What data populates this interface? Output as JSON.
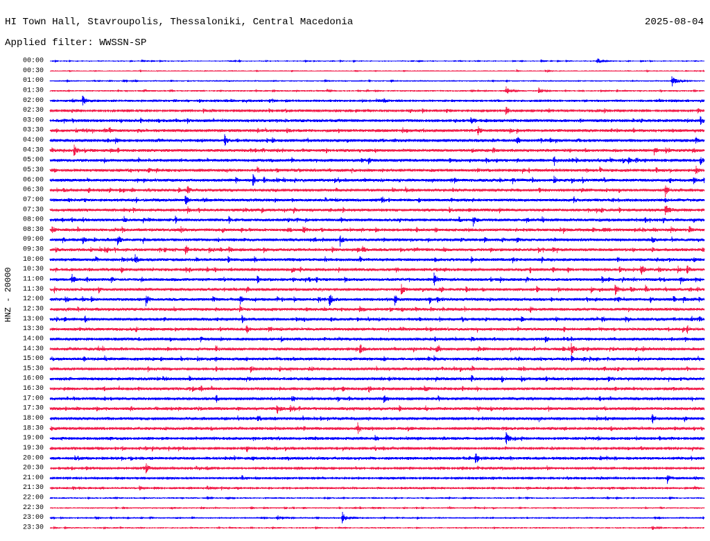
{
  "chart_data": {
    "type": "line",
    "title": "HI Town Hall, Stavroupolis, Thessaloniki, Central Macedonia",
    "date": "2025-08-04",
    "subtitle": "Applied filter: WWSSN-SP",
    "xlabel": "",
    "ylabel": "HNZ - 20000",
    "xlim": [
      0,
      30
    ],
    "grid": false,
    "legend": "none",
    "series_colors": [
      "#0000FF",
      "#F2204C"
    ],
    "series": [
      {
        "name": "00:00",
        "noise": 700,
        "bursts": [
          [
            4.2,
            2800
          ],
          [
            11.7,
            2800
          ],
          [
            13.9,
            2100
          ],
          [
            22.5,
            2100
          ],
          [
            25.1,
            7000
          ],
          [
            26.5,
            1400
          ]
        ]
      },
      {
        "name": "00:30",
        "noise": 700,
        "bursts": [
          [
            0.9,
            1400
          ],
          [
            7.1,
            1400
          ],
          [
            14.9,
            1400
          ],
          [
            22.8,
            2800
          ],
          [
            28.7,
            1400
          ]
        ]
      },
      {
        "name": "01:00",
        "noise": 900,
        "bursts": [
          [
            12.6,
            2800
          ],
          [
            20.9,
            2100
          ],
          [
            28.5,
            16800
          ]
        ]
      },
      {
        "name": "01:30",
        "noise": 1100,
        "bursts": [
          [
            4.3,
            4200
          ],
          [
            12.7,
            4200
          ],
          [
            19.3,
            2800
          ],
          [
            20.9,
            11200
          ],
          [
            22.4,
            9800
          ],
          [
            29.5,
            2100
          ]
        ]
      },
      {
        "name": "02:00",
        "noise": 1800,
        "bursts": [
          [
            1.5,
            14000
          ],
          [
            4.2,
            2800
          ],
          [
            10.2,
            5600
          ],
          [
            15.3,
            7000
          ],
          [
            28.5,
            4200
          ]
        ]
      },
      {
        "name": "02:30",
        "noise": 2200,
        "bursts": [
          [
            1.0,
            5600
          ],
          [
            2.8,
            5600
          ],
          [
            16.5,
            7000
          ],
          [
            20.9,
            11200
          ],
          [
            25.4,
            7000
          ],
          [
            29.7,
            8400
          ]
        ]
      },
      {
        "name": "03:00",
        "noise": 2500,
        "bursts": [
          [
            4.5,
            5600
          ],
          [
            7.9,
            4200
          ],
          [
            10.4,
            4200
          ],
          [
            19.3,
            11200
          ],
          [
            29.8,
            14000
          ]
        ]
      },
      {
        "name": "03:30",
        "noise": 2800,
        "bursts": [
          [
            1.5,
            5600
          ],
          [
            2.7,
            11200
          ],
          [
            4.4,
            4200
          ],
          [
            9.5,
            7000
          ],
          [
            19.6,
            12600
          ],
          [
            21.4,
            7000
          ]
        ]
      },
      {
        "name": "04:00",
        "noise": 2800,
        "bursts": [
          [
            3.0,
            9800
          ],
          [
            8.0,
            14000
          ],
          [
            15.8,
            5600
          ],
          [
            21.4,
            12600
          ],
          [
            22.5,
            7000
          ],
          [
            25.7,
            5600
          ],
          [
            29.6,
            9800
          ]
        ]
      },
      {
        "name": "04:30",
        "noise": 3000,
        "bursts": [
          [
            0.1,
            9800
          ],
          [
            1.1,
            14000
          ],
          [
            10.4,
            7000
          ],
          [
            20.3,
            9800
          ],
          [
            27.7,
            12600
          ],
          [
            29.5,
            7000
          ]
        ]
      },
      {
        "name": "05:00",
        "noise": 3000,
        "bursts": [
          [
            7.2,
            5600
          ],
          [
            14.6,
            9800
          ],
          [
            20.0,
            9800
          ],
          [
            23.1,
            12600
          ],
          [
            26.5,
            9800
          ],
          [
            29.8,
            12600
          ]
        ]
      },
      {
        "name": "05:30",
        "noise": 2800,
        "bursts": [
          [
            4.5,
            8400
          ],
          [
            9.5,
            9800
          ],
          [
            10.4,
            7000
          ],
          [
            19.6,
            7000
          ],
          [
            25.2,
            8400
          ],
          [
            29.6,
            11200
          ]
        ]
      },
      {
        "name": "06:00",
        "noise": 3200,
        "bursts": [
          [
            9.3,
            14000
          ],
          [
            9.8,
            9800
          ],
          [
            10.4,
            8400
          ],
          [
            19.3,
            7000
          ],
          [
            20.6,
            7000
          ],
          [
            23.1,
            11200
          ],
          [
            24.4,
            8400
          ],
          [
            28.4,
            8400
          ],
          [
            29.5,
            11200
          ]
        ]
      },
      {
        "name": "06:30",
        "noise": 3200,
        "bursts": [
          [
            6.3,
            11200
          ],
          [
            10.3,
            7000
          ],
          [
            13.1,
            7000
          ],
          [
            25.5,
            5600
          ],
          [
            28.2,
            16800
          ]
        ]
      },
      {
        "name": "07:00",
        "noise": 3200,
        "bursts": [
          [
            6.2,
            14000
          ],
          [
            10.3,
            7000
          ],
          [
            12.6,
            8400
          ],
          [
            15.2,
            11200
          ],
          [
            16.9,
            7000
          ],
          [
            28.2,
            8400
          ]
        ]
      },
      {
        "name": "07:30",
        "noise": 3200,
        "bursts": [
          [
            6.3,
            9800
          ],
          [
            12.8,
            7000
          ],
          [
            18.3,
            9800
          ],
          [
            20.6,
            7000
          ],
          [
            28.2,
            16800
          ]
        ]
      },
      {
        "name": "08:00",
        "noise": 3500,
        "bursts": [
          [
            1.5,
            8400
          ],
          [
            3.4,
            8400
          ],
          [
            8.2,
            8400
          ],
          [
            11.7,
            7000
          ],
          [
            19.4,
            14000
          ],
          [
            28.1,
            8400
          ],
          [
            29.5,
            7000
          ]
        ]
      },
      {
        "name": "08:30",
        "noise": 3500,
        "bursts": [
          [
            0.1,
            11200
          ],
          [
            3.3,
            8400
          ],
          [
            6.0,
            8400
          ],
          [
            11.6,
            14000
          ],
          [
            16.8,
            7000
          ],
          [
            29.3,
            11200
          ]
        ]
      },
      {
        "name": "09:00",
        "noise": 3500,
        "bursts": [
          [
            1.5,
            11200
          ],
          [
            3.1,
            14000
          ],
          [
            13.3,
            14000
          ],
          [
            19.9,
            9800
          ],
          [
            21.4,
            8400
          ],
          [
            28.5,
            7000
          ]
        ]
      },
      {
        "name": "09:30",
        "noise": 3500,
        "bursts": [
          [
            2.6,
            8400
          ],
          [
            6.2,
            14000
          ],
          [
            8.2,
            9800
          ],
          [
            9.8,
            8400
          ],
          [
            16.8,
            7000
          ],
          [
            26.7,
            8400
          ],
          [
            29.9,
            8400
          ]
        ]
      },
      {
        "name": "10:00",
        "noise": 3300,
        "bursts": [
          [
            3.9,
            14000
          ],
          [
            9.8,
            7000
          ],
          [
            19.3,
            8400
          ],
          [
            21.2,
            8400
          ],
          [
            26.0,
            9800
          ],
          [
            29.5,
            8400
          ]
        ]
      },
      {
        "name": "10:30",
        "noise": 3300,
        "bursts": [
          [
            7.2,
            7000
          ],
          [
            17.7,
            7000
          ],
          [
            22.0,
            9800
          ],
          [
            27.1,
            14000
          ],
          [
            27.9,
            11200
          ],
          [
            29.2,
            11200
          ]
        ]
      },
      {
        "name": "11:00",
        "noise": 3500,
        "bursts": [
          [
            1.0,
            14000
          ],
          [
            2.8,
            8400
          ],
          [
            9.5,
            11200
          ],
          [
            11.7,
            7000
          ],
          [
            17.6,
            16800
          ],
          [
            25.3,
            9800
          ],
          [
            28.9,
            11200
          ]
        ]
      },
      {
        "name": "11:30",
        "noise": 3500,
        "bursts": [
          [
            9.0,
            11200
          ],
          [
            16.1,
            14000
          ],
          [
            25.9,
            14000
          ],
          [
            27.3,
            11200
          ],
          [
            29.3,
            8400
          ]
        ]
      },
      {
        "name": "12:00",
        "noise": 3500,
        "bursts": [
          [
            0.7,
            11200
          ],
          [
            4.4,
            14000
          ],
          [
            8.7,
            14000
          ],
          [
            10.4,
            8400
          ],
          [
            12.8,
            16800
          ],
          [
            15.8,
            14000
          ],
          [
            17.4,
            9800
          ],
          [
            24.6,
            8400
          ]
        ]
      },
      {
        "name": "12:30",
        "noise": 3300,
        "bursts": [
          [
            0.8,
            8400
          ],
          [
            8.7,
            9800
          ],
          [
            12.6,
            7000
          ],
          [
            16.1,
            8400
          ],
          [
            19.0,
            7000
          ],
          [
            26.5,
            7000
          ]
        ]
      },
      {
        "name": "13:00",
        "noise": 3200,
        "bursts": [
          [
            0.3,
            7000
          ],
          [
            1.6,
            9800
          ],
          [
            8.8,
            9800
          ],
          [
            25.3,
            11200
          ],
          [
            26.5,
            7000
          ]
        ]
      },
      {
        "name": "13:30",
        "noise": 3200,
        "bursts": [
          [
            9.0,
            11200
          ],
          [
            15.5,
            7000
          ],
          [
            29.0,
            7000
          ],
          [
            29.2,
            11200
          ]
        ]
      },
      {
        "name": "14:00",
        "noise": 3000,
        "bursts": [
          [
            6.9,
            8400
          ],
          [
            11.4,
            5600
          ],
          [
            18.6,
            7000
          ],
          [
            22.7,
            11200
          ]
        ]
      },
      {
        "name": "14:30",
        "noise": 3200,
        "bursts": [
          [
            2.2,
            8400
          ],
          [
            7.6,
            11200
          ],
          [
            14.2,
            14000
          ],
          [
            17.7,
            11200
          ],
          [
            22.2,
            7000
          ],
          [
            23.9,
            14000
          ]
        ]
      },
      {
        "name": "15:00",
        "noise": 3000,
        "bursts": [
          [
            2.5,
            8400
          ],
          [
            10.4,
            7000
          ],
          [
            15.3,
            7000
          ],
          [
            23.9,
            8400
          ]
        ]
      },
      {
        "name": "15:30",
        "noise": 3000,
        "bursts": [
          [
            9.2,
            8400
          ],
          [
            18.8,
            7000
          ],
          [
            29.2,
            5600
          ]
        ]
      },
      {
        "name": "16:00",
        "noise": 3000,
        "bursts": [
          [
            9.0,
            7000
          ],
          [
            15.2,
            7000
          ],
          [
            19.3,
            11200
          ],
          [
            20.7,
            11200
          ],
          [
            21.6,
            8400
          ],
          [
            28.9,
            5600
          ]
        ]
      },
      {
        "name": "16:30",
        "noise": 3000,
        "bursts": [
          [
            7.4,
            7000
          ],
          [
            14.6,
            11200
          ],
          [
            18.9,
            7000
          ],
          [
            25.9,
            7000
          ]
        ]
      },
      {
        "name": "17:00",
        "noise": 3000,
        "bursts": [
          [
            2.5,
            5600
          ],
          [
            7.6,
            11200
          ],
          [
            13.2,
            8400
          ],
          [
            15.3,
            11200
          ],
          [
            17.8,
            8400
          ]
        ]
      },
      {
        "name": "17:30",
        "noise": 3000,
        "bursts": [
          [
            3.7,
            8400
          ],
          [
            10.4,
            14000
          ],
          [
            11.0,
            11200
          ],
          [
            16.0,
            8400
          ],
          [
            20.8,
            7000
          ],
          [
            25.4,
            7000
          ]
        ]
      },
      {
        "name": "18:00",
        "noise": 2800,
        "bursts": [
          [
            8.0,
            7000
          ],
          [
            9.5,
            7000
          ],
          [
            27.6,
            14000
          ]
        ]
      },
      {
        "name": "18:30",
        "noise": 2600,
        "bursts": [
          [
            5.3,
            7000
          ],
          [
            14.1,
            14000
          ],
          [
            16.4,
            7000
          ],
          [
            25.7,
            8400
          ],
          [
            29.5,
            5600
          ]
        ]
      },
      {
        "name": "19:00",
        "noise": 2400,
        "bursts": [
          [
            10.1,
            8400
          ],
          [
            14.9,
            11200
          ],
          [
            20.9,
            16800
          ]
        ]
      },
      {
        "name": "19:30",
        "noise": 2400,
        "bursts": [
          [
            9.0,
            11200
          ],
          [
            10.3,
            7000
          ],
          [
            14.9,
            7000
          ],
          [
            17.4,
            5600
          ],
          [
            23.0,
            5600
          ]
        ]
      },
      {
        "name": "20:00",
        "noise": 2400,
        "bursts": [
          [
            6.0,
            4200
          ],
          [
            19.5,
            16800
          ],
          [
            21.1,
            7000
          ],
          [
            25.5,
            7000
          ]
        ]
      },
      {
        "name": "20:30",
        "noise": 2200,
        "bursts": [
          [
            4.4,
            14000
          ],
          [
            6.7,
            5600
          ],
          [
            7.2,
            5600
          ],
          [
            14.2,
            4200
          ],
          [
            19.6,
            5600
          ]
        ]
      },
      {
        "name": "21:00",
        "noise": 2000,
        "bursts": [
          [
            8.8,
            7000
          ],
          [
            20.3,
            4200
          ],
          [
            23.7,
            5600
          ],
          [
            28.3,
            11200
          ]
        ]
      },
      {
        "name": "21:30",
        "noise": 1800,
        "bursts": [
          [
            4.1,
            5600
          ],
          [
            7.2,
            5600
          ],
          [
            19.3,
            4200
          ],
          [
            24.1,
            4200
          ],
          [
            26.2,
            4200
          ]
        ]
      },
      {
        "name": "22:00",
        "noise": 1000,
        "bursts": [
          [
            7.2,
            4200
          ],
          [
            28.4,
            2800
          ]
        ]
      },
      {
        "name": "22:30",
        "noise": 1000,
        "bursts": [
          [
            14.2,
            2100
          ],
          [
            23.1,
            2100
          ]
        ]
      },
      {
        "name": "23:00",
        "noise": 1100,
        "bursts": [
          [
            10.4,
            8400
          ],
          [
            13.4,
            14000
          ]
        ]
      },
      {
        "name": "23:30",
        "noise": 900,
        "bursts": [
          [
            8.2,
            2100
          ],
          [
            27.6,
            7000
          ]
        ]
      }
    ]
  }
}
